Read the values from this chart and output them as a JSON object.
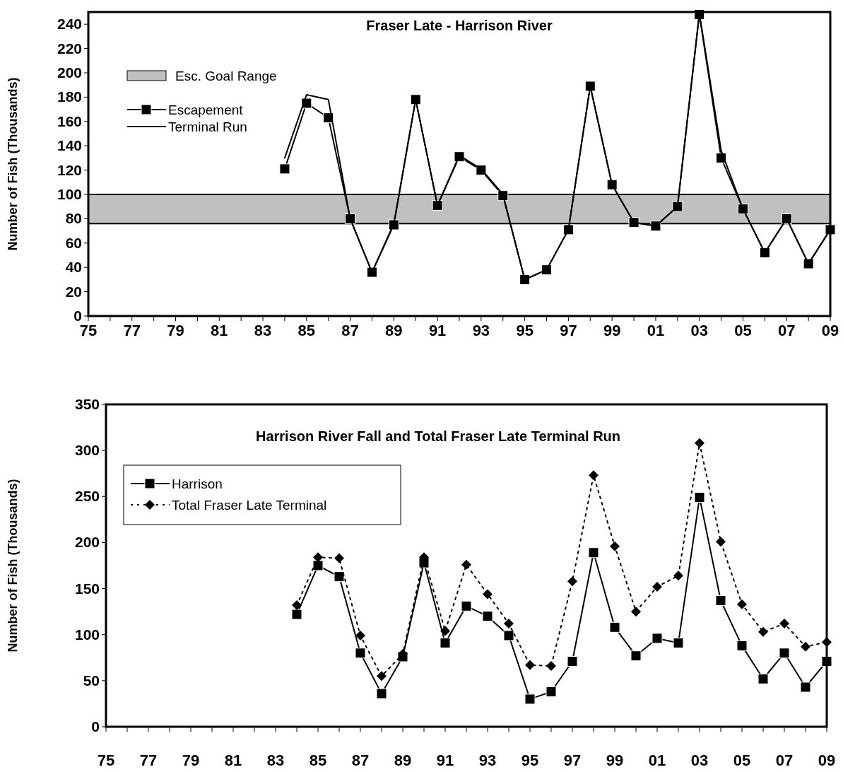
{
  "chart_data": [
    {
      "type": "line",
      "title": "Fraser Late - Harrison River",
      "ylabel": "Number of Fish (Thousands)",
      "xlim": [
        1975,
        2009
      ],
      "ylim": [
        0,
        250
      ],
      "xticks": [
        {
          "value": 1975,
          "label": "75"
        },
        {
          "value": 1976,
          "label": null
        },
        {
          "value": 1977,
          "label": "77"
        },
        {
          "value": 1978,
          "label": null
        },
        {
          "value": 1979,
          "label": "79"
        },
        {
          "value": 1980,
          "label": null
        },
        {
          "value": 1981,
          "label": "81"
        },
        {
          "value": 1982,
          "label": null
        },
        {
          "value": 1983,
          "label": "83"
        },
        {
          "value": 1984,
          "label": null
        },
        {
          "value": 1985,
          "label": "85"
        },
        {
          "value": 1986,
          "label": null
        },
        {
          "value": 1987,
          "label": "87"
        },
        {
          "value": 1988,
          "label": null
        },
        {
          "value": 1989,
          "label": "89"
        },
        {
          "value": 1990,
          "label": null
        },
        {
          "value": 1991,
          "label": "91"
        },
        {
          "value": 1992,
          "label": null
        },
        {
          "value": 1993,
          "label": "93"
        },
        {
          "value": 1994,
          "label": null
        },
        {
          "value": 1995,
          "label": "95"
        },
        {
          "value": 1996,
          "label": null
        },
        {
          "value": 1997,
          "label": "97"
        },
        {
          "value": 1998,
          "label": null
        },
        {
          "value": 1999,
          "label": "99"
        },
        {
          "value": 2000,
          "label": null
        },
        {
          "value": 2001,
          "label": "01"
        },
        {
          "value": 2002,
          "label": null
        },
        {
          "value": 2003,
          "label": "03"
        },
        {
          "value": 2004,
          "label": null
        },
        {
          "value": 2005,
          "label": "05"
        },
        {
          "value": 2006,
          "label": null
        },
        {
          "value": 2007,
          "label": "07"
        },
        {
          "value": 2008,
          "label": null
        },
        {
          "value": 2009,
          "label": "09"
        }
      ],
      "yticks": [
        0,
        20,
        40,
        60,
        80,
        100,
        120,
        140,
        160,
        180,
        200,
        220,
        240
      ],
      "x": [
        1984,
        1985,
        1986,
        1987,
        1988,
        1989,
        1990,
        1991,
        1992,
        1993,
        1994,
        1995,
        1996,
        1997,
        1998,
        1999,
        2000,
        2001,
        2002,
        2003,
        2004,
        2005,
        2006,
        2007,
        2008,
        2009
      ],
      "bands": [
        {
          "axis": "y",
          "from": 76,
          "to": 100,
          "label": "Esc. Goal Range",
          "color": "#c0c0c0"
        }
      ],
      "legend": "top left",
      "grid": false,
      "series": [
        {
          "name": "Escapement",
          "color": "#000000",
          "marker": "square",
          "line_style": "solid",
          "values": [
            121,
            175,
            163,
            80,
            36,
            75,
            178,
            91,
            131,
            120,
            99,
            30,
            38,
            71,
            189,
            108,
            77,
            74,
            90,
            248,
            130,
            88,
            52,
            80,
            43,
            71
          ]
        },
        {
          "name": "Terminal Run",
          "color": "#000000",
          "marker": "none",
          "line_style": "solid",
          "values": [
            130,
            182,
            178,
            80,
            36,
            76,
            178,
            91,
            132,
            121,
            100,
            30,
            38,
            71,
            189,
            108,
            77,
            74,
            90,
            249,
            136,
            88,
            52,
            80,
            43,
            71
          ]
        }
      ]
    },
    {
      "type": "line",
      "title": "Harrison River Fall and Total Fraser Late Terminal Run",
      "ylabel": "Number of Fish (Thousands)",
      "xlim": [
        1975,
        2009
      ],
      "ylim": [
        0,
        350
      ],
      "xticks": [
        {
          "value": 1975,
          "label": "75"
        },
        {
          "value": 1976,
          "label": null
        },
        {
          "value": 1977,
          "label": "77"
        },
        {
          "value": 1978,
          "label": null
        },
        {
          "value": 1979,
          "label": "79"
        },
        {
          "value": 1980,
          "label": null
        },
        {
          "value": 1981,
          "label": "81"
        },
        {
          "value": 1982,
          "label": null
        },
        {
          "value": 1983,
          "label": "83"
        },
        {
          "value": 1984,
          "label": null
        },
        {
          "value": 1985,
          "label": "85"
        },
        {
          "value": 1986,
          "label": null
        },
        {
          "value": 1987,
          "label": "87"
        },
        {
          "value": 1988,
          "label": null
        },
        {
          "value": 1989,
          "label": "89"
        },
        {
          "value": 1990,
          "label": null
        },
        {
          "value": 1991,
          "label": "91"
        },
        {
          "value": 1992,
          "label": null
        },
        {
          "value": 1993,
          "label": "93"
        },
        {
          "value": 1994,
          "label": null
        },
        {
          "value": 1995,
          "label": "95"
        },
        {
          "value": 1996,
          "label": null
        },
        {
          "value": 1997,
          "label": "97"
        },
        {
          "value": 1998,
          "label": null
        },
        {
          "value": 1999,
          "label": "99"
        },
        {
          "value": 2000,
          "label": null
        },
        {
          "value": 2001,
          "label": "01"
        },
        {
          "value": 2002,
          "label": null
        },
        {
          "value": 2003,
          "label": "03"
        },
        {
          "value": 2004,
          "label": null
        },
        {
          "value": 2005,
          "label": "05"
        },
        {
          "value": 2006,
          "label": null
        },
        {
          "value": 2007,
          "label": "07"
        },
        {
          "value": 2008,
          "label": null
        },
        {
          "value": 2009,
          "label": "09"
        }
      ],
      "yticks": [
        0,
        50,
        100,
        150,
        200,
        250,
        300,
        350
      ],
      "x": [
        1984,
        1985,
        1986,
        1987,
        1988,
        1989,
        1990,
        1991,
        1992,
        1993,
        1994,
        1995,
        1996,
        1997,
        1998,
        1999,
        2000,
        2001,
        2002,
        2003,
        2004,
        2005,
        2006,
        2007,
        2008,
        2009
      ],
      "legend": "top left",
      "grid": false,
      "series": [
        {
          "name": "Harrison",
          "color": "#000000",
          "marker": "square",
          "line_style": "solid",
          "values": [
            122,
            175,
            163,
            80,
            36,
            76,
            178,
            91,
            131,
            120,
            99,
            30,
            38,
            71,
            189,
            108,
            77,
            96,
            91,
            249,
            137,
            88,
            52,
            80,
            43,
            71
          ]
        },
        {
          "name": "Total Fraser Late Terminal",
          "color": "#000000",
          "marker": "diamond",
          "line_style": "dotted",
          "values": [
            132,
            184,
            183,
            99,
            55,
            79,
            184,
            104,
            176,
            144,
            112,
            67,
            66,
            158,
            273,
            196,
            125,
            152,
            164,
            308,
            201,
            133,
            103,
            112,
            87,
            92
          ]
        }
      ]
    }
  ]
}
